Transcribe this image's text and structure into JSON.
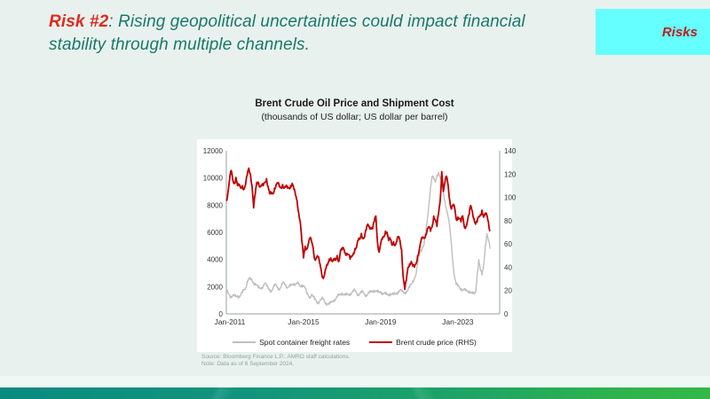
{
  "slide": {
    "title": {
      "prefix": "Risk #2",
      "separator": ": ",
      "rest": "Rising geopolitical uncertainties could impact financial stability through multiple channels."
    },
    "tab": {
      "label": "Risks"
    }
  },
  "chart": {
    "title": "Brent Crude Oil Price and Shipment Cost",
    "subtitle": "(thousands of US dollar; US dollar per barrel)",
    "source_line1": "Source: Bloomberg Finance L.P.; AMRO staff calculations.",
    "source_line2": "Note: Data as of 6 September 2024."
  },
  "chart_data": {
    "type": "line",
    "title": "Brent Crude Oil Price and Shipment Cost",
    "subtitle": "(thousands of US dollar; US dollar per barrel)",
    "x_start_label": "Jan-2011",
    "x_tick_labels": [
      "Jan-2011",
      "Jan-2015",
      "Jan-2019",
      "Jan-2023"
    ],
    "x_tick_months": [
      0,
      48,
      96,
      144
    ],
    "x_total_months": 170,
    "grid": false,
    "legend_position": "bottom",
    "left_axis": {
      "label": "thousands of US dollar",
      "min": 0,
      "max": 12000,
      "ticks": [
        0,
        2000,
        4000,
        6000,
        8000,
        10000,
        12000
      ]
    },
    "right_axis": {
      "label": "US dollar per barrel",
      "min": 0,
      "max": 140,
      "ticks": [
        0,
        20,
        40,
        60,
        80,
        100,
        120,
        140
      ]
    },
    "series": [
      {
        "name": "Spot container freight rates",
        "axis": "left",
        "color": "#bfbfbf",
        "stroke_width": 1.4,
        "values": [
          1700,
          1550,
          1400,
          1300,
          1350,
          1300,
          1250,
          1350,
          1300,
          1400,
          1550,
          1750,
          1900,
          2400,
          2600,
          2500,
          2450,
          2300,
          2250,
          2100,
          1900,
          1850,
          1950,
          2100,
          2250,
          2050,
          1900,
          1800,
          1700,
          1850,
          2050,
          2150,
          1950,
          1850,
          1950,
          2200,
          2300,
          2150,
          1950,
          2000,
          2050,
          2150,
          2250,
          2200,
          2250,
          2150,
          2000,
          2150,
          2100,
          1900,
          1500,
          1350,
          1250,
          1450,
          1250,
          1050,
          950,
          850,
          950,
          1050,
          1100,
          950,
          800,
          750,
          700,
          800,
          950,
          1050,
          1100,
          1250,
          1350,
          1450,
          1550,
          1450,
          1350,
          1400,
          1450,
          1500,
          1550,
          1650,
          1700,
          1550,
          1450,
          1500,
          1550,
          1600,
          1450,
          1400,
          1450,
          1550,
          1600,
          1700,
          1750,
          1650,
          1600,
          1550,
          1650,
          1550,
          1500,
          1450,
          1400,
          1450,
          1500,
          1450,
          1400,
          1450,
          1550,
          1650,
          1750,
          1650,
          1550,
          1600,
          1650,
          1750,
          1950,
          2150,
          2450,
          2650,
          2900,
          3600,
          4400,
          4700,
          4900,
          5100,
          5900,
          6900,
          8100,
          9300,
          10100,
          9900,
          9700,
          10200,
          10400,
          10000,
          9500,
          8900,
          8300,
          7700,
          7100,
          6300,
          5100,
          3700,
          2700,
          2150,
          2050,
          1950,
          1850,
          1800,
          1750,
          1700,
          1650,
          1700,
          1600,
          1500,
          1450,
          1550,
          2900,
          4000,
          3200,
          2850,
          3500,
          4900,
          5900,
          5400,
          4800
        ]
      },
      {
        "name": "Brent crude price (RHS)",
        "axis": "right",
        "color": "#c00000",
        "stroke_width": 1.8,
        "values": [
          97,
          104,
          115,
          123,
          115,
          112,
          117,
          110,
          110,
          108,
          110,
          107,
          111,
          119,
          125,
          120,
          110,
          91,
          103,
          113,
          113,
          109,
          110,
          110,
          113,
          116,
          109,
          103,
          103,
          103,
          108,
          111,
          112,
          109,
          108,
          111,
          108,
          109,
          108,
          108,
          110,
          112,
          107,
          102,
          97,
          87,
          79,
          62,
          48,
          58,
          56,
          60,
          65,
          62,
          57,
          47,
          48,
          49,
          44,
          38,
          31,
          33,
          39,
          42,
          47,
          48,
          45,
          46,
          46,
          50,
          45,
          54,
          55,
          56,
          52,
          52,
          51,
          47,
          49,
          52,
          56,
          57,
          63,
          64,
          69,
          65,
          66,
          72,
          77,
          75,
          74,
          73,
          79,
          84,
          62,
          53,
          60,
          64,
          66,
          71,
          70,
          63,
          64,
          59,
          62,
          59,
          62,
          66,
          63,
          55,
          32,
          21,
          29,
          40,
          43,
          45,
          41,
          40,
          43,
          50,
          55,
          62,
          65,
          65,
          68,
          73,
          74,
          71,
          75,
          84,
          81,
          75,
          86,
          97,
          122,
          105,
          113,
          118,
          110,
          97,
          90,
          93,
          91,
          81,
          83,
          82,
          79,
          84,
          75,
          75,
          80,
          85,
          93,
          88,
          82,
          77,
          79,
          83,
          85,
          89,
          83,
          85,
          85,
          79,
          71
        ]
      }
    ]
  }
}
